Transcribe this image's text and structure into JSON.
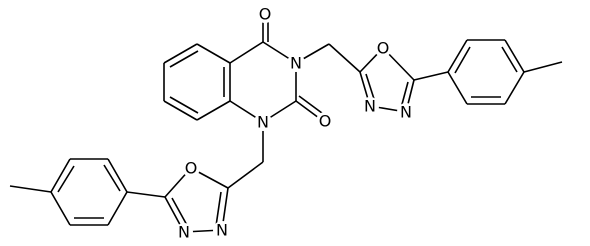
{
  "atoms": [
    "O",
    "O",
    "N",
    "N",
    "O",
    "N",
    "N",
    "O",
    "N",
    "N"
  ]
}
